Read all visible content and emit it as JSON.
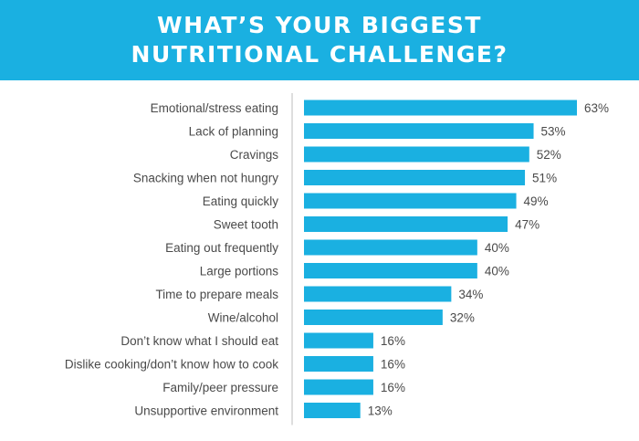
{
  "header": {
    "title_line1": "WHAT’S YOUR BIGGEST",
    "title_line2": "NUTRITIONAL CHALLENGE?"
  },
  "colors": {
    "header_bg": "#1ab0e1",
    "bar": "#1ab0e1",
    "axis": "#bdbdbd",
    "text": "#4a4a4a"
  },
  "chart_data": {
    "type": "bar",
    "orientation": "horizontal",
    "title": "WHAT’S YOUR BIGGEST NUTRITIONAL CHALLENGE?",
    "categories": [
      "Emotional/stress eating",
      "Lack of planning",
      "Cravings",
      "Snacking when not hungry",
      "Eating quickly",
      "Sweet tooth",
      "Eating out frequently",
      "Large portions",
      "Time to prepare meals",
      "Wine/alcohol",
      "Don’t know what I should eat",
      "Dislike cooking/don’t know how to cook",
      "Family/peer pressure",
      "Unsupportive environment"
    ],
    "values": [
      63,
      53,
      52,
      51,
      49,
      47,
      40,
      40,
      34,
      32,
      16,
      16,
      16,
      13
    ],
    "value_labels": [
      "63%",
      "53%",
      "52%",
      "51%",
      "49%",
      "47%",
      "40%",
      "40%",
      "34%",
      "32%",
      "16%",
      "16%",
      "16%",
      "13%"
    ],
    "unit": "%",
    "xlabel": "",
    "ylabel": "",
    "xlim": [
      0,
      63
    ],
    "grid": false,
    "legend": "none"
  }
}
